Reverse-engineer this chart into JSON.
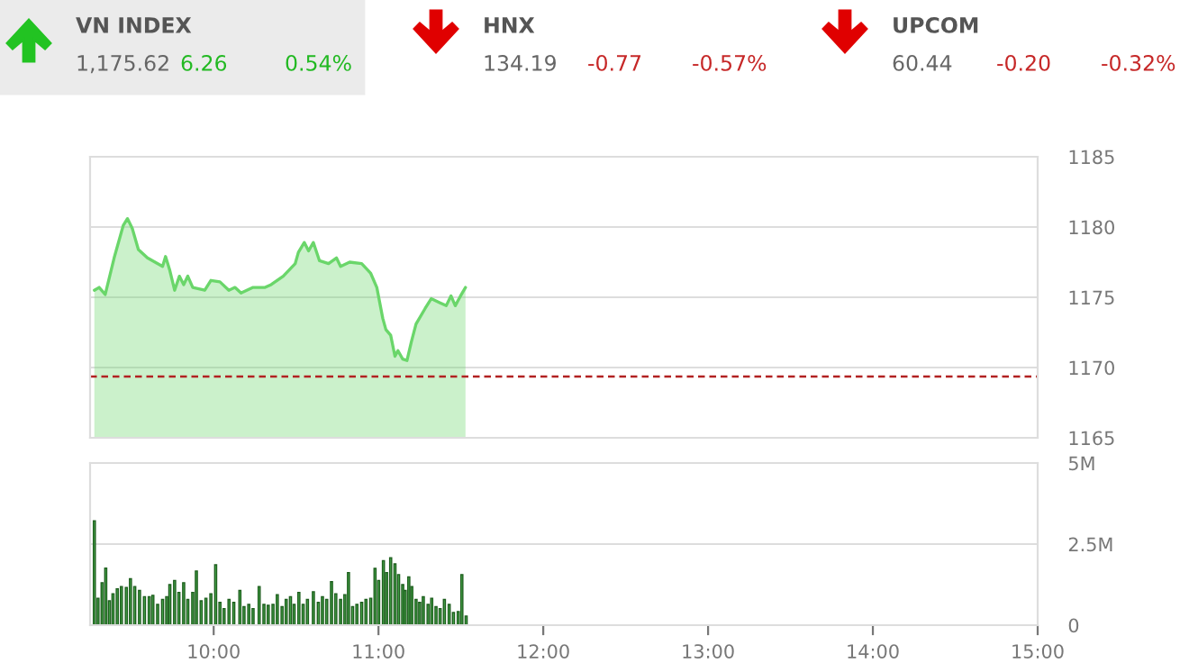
{
  "chart_data": [
    {
      "type": "other",
      "annotations": [
        "VN INDEX",
        "1,175.62",
        "6.26",
        "0.54%",
        "HNX",
        "134.19",
        "-0.77",
        "-0.57%",
        "UPCOM",
        "60.44",
        "-0.20",
        "-0.32%"
      ]
    },
    {
      "type": "area",
      "color": "#6ad66a",
      "tick_labels": "y",
      "grid": "y",
      "legend": false,
      "x": [
        9.276,
        9.305,
        9.342,
        9.396,
        9.451,
        9.477,
        9.506,
        9.543,
        9.598,
        9.69,
        9.708,
        9.734,
        9.763,
        9.792,
        9.818,
        9.843,
        9.873,
        9.946,
        9.983,
        10.038,
        10.092,
        10.129,
        10.166,
        10.239,
        10.312,
        10.349,
        10.422,
        10.495,
        10.514,
        10.55,
        10.576,
        10.605,
        10.642,
        10.697,
        10.745,
        10.77,
        10.825,
        10.898,
        10.953,
        10.99,
        11.026,
        11.045,
        11.074,
        11.1,
        11.118,
        11.147,
        11.173,
        11.199,
        11.228,
        11.283,
        11.32,
        11.374,
        11.411,
        11.44,
        11.466,
        11.503,
        11.528
      ],
      "values": [
        1175.5,
        1175.7,
        1175.2,
        1177.8,
        1180.1,
        1180.6,
        1179.9,
        1178.4,
        1177.8,
        1177.2,
        1177.9,
        1176.9,
        1175.5,
        1176.5,
        1175.9,
        1176.5,
        1175.7,
        1175.5,
        1176.2,
        1176.1,
        1175.5,
        1175.7,
        1175.3,
        1175.7,
        1175.7,
        1175.9,
        1176.5,
        1177.4,
        1178.2,
        1178.9,
        1178.3,
        1178.9,
        1177.6,
        1177.4,
        1177.8,
        1177.2,
        1177.5,
        1177.4,
        1176.7,
        1175.7,
        1173.5,
        1172.7,
        1172.3,
        1170.8,
        1171.2,
        1170.6,
        1170.5,
        1171.8,
        1173.1,
        1174.2,
        1174.9,
        1174.6,
        1174.4,
        1175.1,
        1174.4,
        1175.2,
        1175.7
      ],
      "xlim": [
        9.25,
        15
      ],
      "ylim": [
        1165,
        1185
      ],
      "yticks": [
        1165,
        1170,
        1175,
        1180,
        1185
      ],
      "ref_lines": [
        {
          "axis": "y",
          "value": 1169.36,
          "color": "#b22222",
          "line_style": "dashed"
        }
      ]
    },
    {
      "type": "bar",
      "color": "#4caf50",
      "grid": "y",
      "legend": false,
      "x": [
        9.276,
        9.298,
        9.323,
        9.345,
        9.367,
        9.389,
        9.415,
        9.44,
        9.47,
        9.495,
        9.521,
        9.55,
        9.58,
        9.609,
        9.631,
        9.66,
        9.69,
        9.715,
        9.734,
        9.763,
        9.789,
        9.818,
        9.843,
        9.873,
        9.895,
        9.924,
        9.953,
        9.983,
        10.012,
        10.038,
        10.063,
        10.093,
        10.122,
        10.159,
        10.184,
        10.213,
        10.239,
        10.276,
        10.305,
        10.331,
        10.36,
        10.386,
        10.415,
        10.44,
        10.466,
        10.488,
        10.517,
        10.543,
        10.569,
        10.605,
        10.635,
        10.66,
        10.686,
        10.715,
        10.741,
        10.77,
        10.796,
        10.818,
        10.843,
        10.869,
        10.898,
        10.924,
        10.953,
        10.979,
        11.001,
        11.03,
        11.049,
        11.074,
        11.1,
        11.122,
        11.147,
        11.162,
        11.184,
        11.202,
        11.228,
        11.25,
        11.272,
        11.301,
        11.323,
        11.349,
        11.374,
        11.4,
        11.429,
        11.455,
        11.484,
        11.506,
        11.532
      ],
      "values": [
        3.22,
        0.83,
        1.31,
        1.76,
        0.75,
        0.97,
        1.12,
        1.19,
        1.16,
        1.43,
        1.19,
        1.07,
        0.88,
        0.88,
        0.92,
        0.64,
        0.79,
        0.88,
        1.25,
        1.38,
        1.01,
        1.31,
        0.79,
        1.01,
        1.67,
        0.75,
        0.83,
        0.97,
        1.86,
        0.7,
        0.51,
        0.79,
        0.7,
        1.07,
        0.57,
        0.64,
        0.51,
        1.19,
        0.64,
        0.61,
        0.64,
        0.94,
        0.57,
        0.79,
        0.88,
        0.64,
        1.01,
        0.64,
        0.79,
        1.03,
        0.7,
        0.88,
        0.79,
        1.34,
        0.97,
        0.79,
        0.94,
        1.62,
        0.57,
        0.64,
        0.7,
        0.79,
        0.83,
        1.75,
        1.38,
        1.99,
        1.62,
        2.08,
        1.89,
        1.56,
        1.25,
        1.07,
        1.49,
        1.19,
        0.79,
        0.7,
        0.88,
        0.64,
        0.83,
        0.57,
        0.51,
        0.79,
        0.64,
        0.39,
        0.42,
        1.56,
        0.28
      ],
      "xlim": [
        9.25,
        15
      ],
      "xticks": [
        {
          "value": 10,
          "label": "10:00"
        },
        {
          "value": 11,
          "label": "11:00"
        },
        {
          "value": 12,
          "label": "12:00"
        },
        {
          "value": 13,
          "label": "13:00"
        },
        {
          "value": 14,
          "label": "14:00"
        },
        {
          "value": 15,
          "label": "15:00"
        }
      ],
      "ylim": [
        0,
        5
      ],
      "yticks": [
        {
          "value": 0,
          "label": "0"
        },
        {
          "value": 2.5,
          "label": "2.5M"
        },
        {
          "value": 5,
          "label": "5M"
        }
      ]
    }
  ]
}
